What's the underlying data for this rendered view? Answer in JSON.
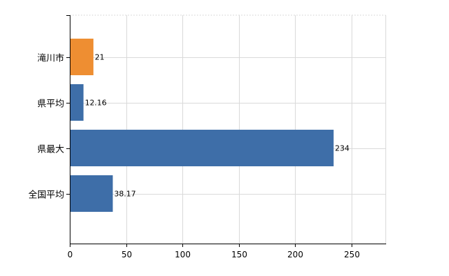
{
  "chart_data": {
    "type": "bar",
    "orientation": "horizontal",
    "categories": [
      "滝川市",
      "県平均",
      "県最大",
      "全国平均"
    ],
    "values": [
      21,
      12.16,
      234,
      38.17
    ],
    "value_labels": [
      "21",
      "12.16",
      "234",
      "38.17"
    ],
    "bar_colors": [
      "#ee8e32",
      "#3e6ea8",
      "#3e6ea8",
      "#3e6ea8"
    ],
    "title": "",
    "xlabel": "",
    "ylabel": "",
    "xlim": [
      0,
      280
    ],
    "x_ticks": [
      0,
      50,
      100,
      150,
      200,
      250
    ],
    "x_tick_labels": [
      "0",
      "50",
      "100",
      "150",
      "200",
      "250"
    ],
    "grid": true,
    "legend": "none"
  },
  "colors": {
    "highlight": "#ee8e32",
    "base": "#3e6ea8",
    "grid": "#d9d9d9",
    "axis": "#000000"
  }
}
